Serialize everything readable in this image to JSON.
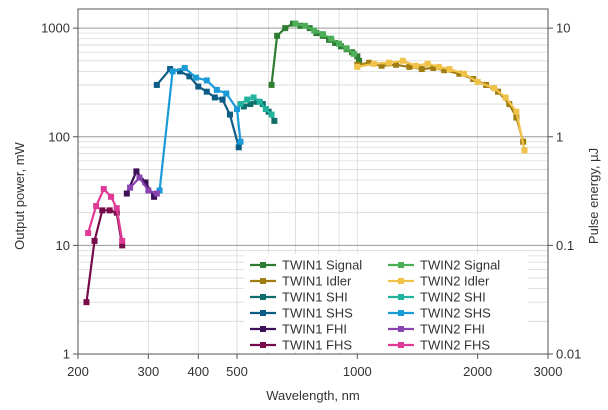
{
  "chart_data": {
    "type": "line",
    "xlabel": "Wavelength, nm",
    "ylabel": "Output power, mW",
    "y2label": "Pulse energy, µJ",
    "xscale": "log",
    "yscale": "log",
    "xlim": [
      200,
      3000
    ],
    "ylim": [
      1,
      1500
    ],
    "y2lim": [
      0.01,
      15
    ],
    "grid": true,
    "legend_position": "lower-right",
    "xticks": [
      200,
      300,
      400,
      500,
      1000,
      2000,
      3000
    ],
    "xtick_labels": [
      "200",
      "300",
      "400",
      "500",
      "1000",
      "2000",
      "3000"
    ],
    "yticks": [
      1,
      10,
      100,
      1000
    ],
    "ytick_labels": [
      "1",
      "10",
      "100",
      "1000"
    ],
    "y2ticks": [
      0.01,
      0.1,
      1,
      10
    ],
    "y2tick_labels": [
      "0.01",
      "0.1",
      "1",
      "10"
    ],
    "series": [
      {
        "name": "TWIN1 Signal",
        "color": "#2e7d32",
        "x": [
          610,
          630,
          660,
          690,
          720,
          760,
          790,
          820,
          850,
          880,
          910,
          940,
          970,
          1000,
          1010
        ],
        "y": [
          300,
          850,
          1000,
          1100,
          1050,
          1000,
          900,
          850,
          780,
          730,
          680,
          640,
          600,
          550,
          500
        ]
      },
      {
        "name": "TWIN1 Idler",
        "color": "#a07d10",
        "x": [
          1000,
          1070,
          1150,
          1250,
          1350,
          1450,
          1550,
          1650,
          1800,
          1950,
          2100,
          2250,
          2400,
          2500,
          2600
        ],
        "y": [
          460,
          480,
          450,
          460,
          440,
          420,
          430,
          410,
          380,
          340,
          300,
          260,
          200,
          150,
          90
        ]
      },
      {
        "name": "TWIN1 SHI",
        "color": "#0e6f6a",
        "x": [
          520,
          540,
          560,
          580,
          600,
          620
        ],
        "y": [
          190,
          200,
          210,
          200,
          170,
          140
        ]
      },
      {
        "name": "TWIN1 SHS",
        "color": "#0d5c86",
        "x": [
          315,
          340,
          360,
          380,
          400,
          420,
          440,
          460,
          480,
          505
        ],
        "y": [
          300,
          420,
          400,
          360,
          290,
          260,
          230,
          220,
          160,
          80
        ]
      },
      {
        "name": "TWIN1 FHI",
        "color": "#3c1158",
        "x": [
          265,
          280,
          295,
          310
        ],
        "y": [
          30,
          48,
          38,
          28
        ]
      },
      {
        "name": "TWIN1 FHS",
        "color": "#780c4a",
        "x": [
          210,
          220,
          230,
          240,
          250,
          258
        ],
        "y": [
          3,
          11,
          21,
          21,
          20,
          10
        ]
      },
      {
        "name": "TWIN2 Signal",
        "color": "#4caf58",
        "x": [
          700,
          740,
          780,
          820,
          860,
          900,
          940,
          980
        ],
        "y": [
          1100,
          1050,
          950,
          880,
          800,
          720,
          650,
          580
        ]
      },
      {
        "name": "TWIN2 Idler",
        "color": "#f0c24a",
        "x": [
          1000,
          1100,
          1200,
          1300,
          1400,
          1500,
          1600,
          1700,
          1850,
          2000,
          2200,
          2350,
          2500,
          2620
        ],
        "y": [
          440,
          470,
          480,
          500,
          450,
          470,
          440,
          420,
          380,
          320,
          280,
          230,
          170,
          75
        ]
      },
      {
        "name": "TWIN2 SHI",
        "color": "#22b39c",
        "x": [
          510,
          530,
          550,
          570,
          590,
          610
        ],
        "y": [
          200,
          220,
          230,
          210,
          180,
          160
        ]
      },
      {
        "name": "TWIN2 SHS",
        "color": "#1a9bd7",
        "x": [
          320,
          345,
          370,
          395,
          420,
          445,
          470,
          500,
          510
        ],
        "y": [
          32,
          400,
          430,
          350,
          330,
          270,
          250,
          180,
          90
        ]
      },
      {
        "name": "TWIN2 FHI",
        "color": "#8a44b0",
        "x": [
          270,
          285,
          300,
          315
        ],
        "y": [
          34,
          42,
          32,
          30
        ]
      },
      {
        "name": "TWIN2 FHS",
        "color": "#e03a97",
        "x": [
          212,
          222,
          232,
          242,
          250,
          258
        ],
        "y": [
          13,
          23,
          33,
          28,
          22,
          11
        ]
      }
    ]
  }
}
